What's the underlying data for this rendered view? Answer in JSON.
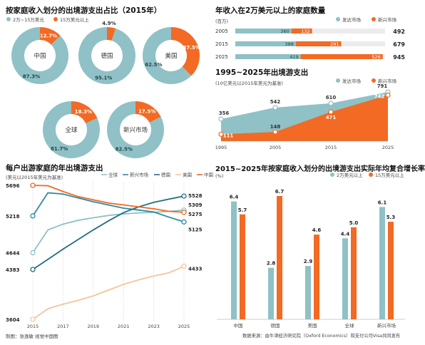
{
  "colors": {
    "teal": "#8fc1c6",
    "orange": "#f26a24",
    "dark_teal": "#1f6e80",
    "mid_teal": "#2b8aa3",
    "peach": "#f3c59b",
    "grey": "#888888"
  },
  "donuts": {
    "title": "按家庭收入划分的出境游支出占比（2015年）",
    "legend": [
      "2万~15万美元",
      "15万美元以上"
    ],
    "chart_data": {
      "type": "pie",
      "categories": [
        "中国",
        "德国",
        "美国",
        "全球",
        "新兴市场"
      ],
      "series": [
        {
          "name": "2万~15万美元",
          "values": [
            87.3,
            95.1,
            62.5,
            81.7,
            82.5
          ]
        },
        {
          "name": "15万美元以上",
          "values": [
            12.7,
            4.9,
            37.5,
            18.3,
            17.5
          ]
        }
      ],
      "value_labels": {
        "low": [
          "87.3%",
          "95.1%",
          "62.5%",
          "81.7%",
          "82.5%"
        ],
        "high": [
          "12.7%",
          "4.9%",
          "37.5%",
          "18.3%",
          "17.5%"
        ]
      }
    }
  },
  "households": {
    "title": "年收入在2万美元以上的家庭数量",
    "unit": "(百万)",
    "legend": [
      "发达市场",
      "新兴市场"
    ],
    "chart_data": {
      "type": "bar",
      "orientation": "horizontal",
      "stacked": true,
      "categories": [
        "2005",
        "2015",
        "2025"
      ],
      "series": [
        {
          "name": "发达市场",
          "values": [
            360,
            388,
            419
          ]
        },
        {
          "name": "新兴市场",
          "values": [
            132,
            291,
            526
          ]
        }
      ],
      "totals": [
        492,
        679,
        945
      ],
      "labels": {
        "dev": [
          "360",
          "388",
          "419"
        ],
        "emg": [
          "132",
          "291",
          "526"
        ],
        "totals": [
          "492",
          "679",
          "945"
        ]
      }
    }
  },
  "spending_area": {
    "title": "1995~2025年出境游支出",
    "unit": "(10亿美元以2015年美元为基准)",
    "legend": [
      "发达市场",
      "新兴市场"
    ],
    "chart_data": {
      "type": "area",
      "x": [
        1995,
        2005,
        2015,
        2025
      ],
      "x_labels": [
        "1995",
        "2005",
        "2015",
        "2025"
      ],
      "series": [
        {
          "name": "发达市场",
          "values": [
            356,
            542,
            610,
            791
          ]
        },
        {
          "name": "新兴市场",
          "values": [
            111,
            148,
            471,
            742
          ]
        }
      ],
      "labels": {
        "dev": [
          "356",
          "542",
          "610",
          "791"
        ],
        "emg": [
          "111",
          "148",
          "471",
          "742"
        ]
      }
    }
  },
  "per_trip": {
    "title": "每户出游家庭的年出境游支出",
    "unit": "(美元以2015年美元为基准)",
    "legend": [
      "全球",
      "新兴市场",
      "德国",
      "美国",
      "中国"
    ],
    "chart_data": {
      "type": "line",
      "x": [
        2015,
        2016,
        2017,
        2018,
        2019,
        2020,
        2021,
        2022,
        2023,
        2024,
        2025
      ],
      "x_labels": [
        "2015",
        "2017",
        "2019",
        "2021",
        "2023",
        "2025"
      ],
      "ylim": [
        3604,
        5696
      ],
      "series": [
        {
          "name": "全球",
          "values": [
            4644,
            5000,
            5090,
            5150,
            5190,
            5225,
            5250,
            5265,
            5275,
            5290,
            5309
          ]
        },
        {
          "name": "新兴市场",
          "values": [
            5218,
            5580,
            5560,
            5500,
            5440,
            5390,
            5340,
            5310,
            5280,
            5200,
            5125
          ]
        },
        {
          "name": "德国",
          "values": [
            4383,
            4540,
            4700,
            4850,
            5000,
            5140,
            5270,
            5360,
            5430,
            5480,
            5528
          ]
        },
        {
          "name": "美国",
          "values": [
            3604,
            3770,
            3840,
            3900,
            3970,
            4060,
            4150,
            4220,
            4280,
            4330,
            4433
          ]
        },
        {
          "name": "中国",
          "values": [
            5696,
            5690,
            5600,
            5520,
            5470,
            5420,
            5390,
            5360,
            5330,
            5290,
            5275
          ]
        }
      ],
      "endpoint_labels": {
        "start": [
          "4644",
          "5218",
          "4383",
          "3604",
          "5696"
        ],
        "end": [
          "5309",
          "5125",
          "5528",
          "4433",
          "5275"
        ]
      }
    }
  },
  "cagr": {
    "title": "2015~2025年按家庭收入划分的出境游支出实际年均复合增长率",
    "unit": "(%)",
    "legend": [
      "2万美元以上",
      "15万美元以上"
    ],
    "chart_data": {
      "type": "bar",
      "categories": [
        "中国",
        "德国",
        "美国",
        "全球",
        "新兴市场"
      ],
      "series": [
        {
          "name": "2万美元以上",
          "values": [
            6.4,
            2.8,
            2.9,
            4.4,
            6.1
          ]
        },
        {
          "name": "15万美元以上",
          "values": [
            5.7,
            6.7,
            4.6,
            5.0,
            5.3
          ]
        }
      ],
      "labels": {
        "a": [
          "6.4",
          "2.8",
          "2.9",
          "4.4",
          "6.1"
        ],
        "b": [
          "5.7",
          "6.7",
          "4.6",
          "5.0",
          "5.3"
        ]
      }
    }
  },
  "footer": {
    "credit": "制图：张逸敏  视觉中国图",
    "source": "数据来源：由牛津经济研究院（Oxford Economics）和支付公司Visa共同发布"
  }
}
